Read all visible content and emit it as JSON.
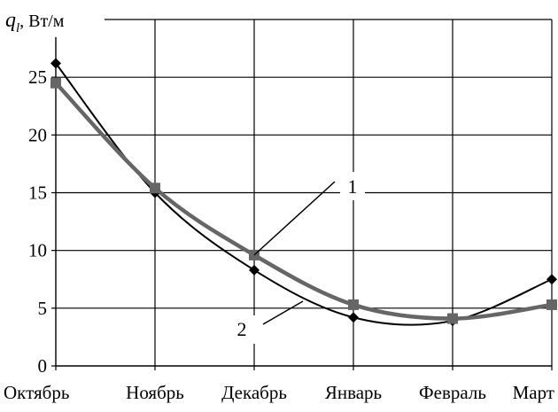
{
  "chart_data": {
    "type": "line",
    "ylabel": {
      "symbol": "q",
      "subscript": "l",
      "unit": ", Вт/м"
    },
    "categories": [
      "Октябрь",
      "Ноябрь",
      "Декабрь",
      "Январь",
      "Февраль",
      "Март"
    ],
    "y_ticks": [
      "0",
      "5",
      "10",
      "15",
      "20",
      "25"
    ],
    "ylim": [
      0,
      30
    ],
    "grid": true,
    "series": [
      {
        "name": "1",
        "values": [
          26.2,
          15.0,
          8.3,
          4.2,
          3.9,
          7.5
        ],
        "color": "#000000",
        "marker": "diamond"
      },
      {
        "name": "2",
        "values": [
          24.5,
          15.4,
          9.6,
          5.3,
          4.1,
          5.3
        ],
        "color": "#666666",
        "marker": "square"
      }
    ]
  }
}
